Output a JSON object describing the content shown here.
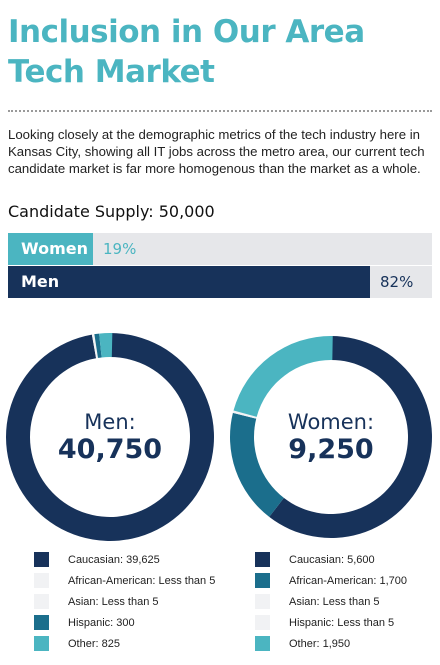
{
  "title": "Inclusion in Our Area Tech Market",
  "intro": "Looking closely at the demographic metrics of the tech industry here in Kansas City, showing all IT jobs across the metro area, our current tech candidate market is far more homogenous than the market as a whole.",
  "supply_label": "Candidate Supply: 50,000",
  "colors": {
    "accent": "#4bb5c1",
    "navy": "#17325a",
    "teal": "#1b6e8c",
    "light": "#4bb5c1",
    "track": "#e6e7ea",
    "pale": "#f1f2f4"
  },
  "chart_data": [
    {
      "type": "bar",
      "orientation": "horizontal",
      "categories": [
        "Women",
        "Men"
      ],
      "values": [
        19,
        82
      ],
      "value_labels": [
        "19%",
        "82%"
      ],
      "unit": "%"
    },
    {
      "type": "pie",
      "donut": true,
      "center_title": "Men:",
      "center_value": "40,750",
      "slices": [
        {
          "label": "Caucasian: 39,625",
          "value": 39625,
          "color": "#17325a"
        },
        {
          "label": "African-American: Less than 5",
          "value": 5,
          "color": "#f1f2f4"
        },
        {
          "label": "Asian: Less than 5",
          "value": 5,
          "color": "#f1f2f4"
        },
        {
          "label": "Hispanic: 300",
          "value": 300,
          "color": "#1b6e8c"
        },
        {
          "label": "Other: 825",
          "value": 825,
          "color": "#4bb5c1"
        }
      ]
    },
    {
      "type": "pie",
      "donut": true,
      "center_title": "Women:",
      "center_value": "9,250",
      "slices": [
        {
          "label": "Caucasian: 5,600",
          "value": 5600,
          "color": "#17325a"
        },
        {
          "label": "African-American: 1,700",
          "value": 1700,
          "color": "#1b6e8c"
        },
        {
          "label": "Asian: Less than 5",
          "value": 5,
          "color": "#f1f2f4"
        },
        {
          "label": "Hispanic: Less than 5",
          "value": 5,
          "color": "#f1f2f4"
        },
        {
          "label": "Other: 1,950",
          "value": 1950,
          "color": "#4bb5c1"
        }
      ]
    }
  ]
}
